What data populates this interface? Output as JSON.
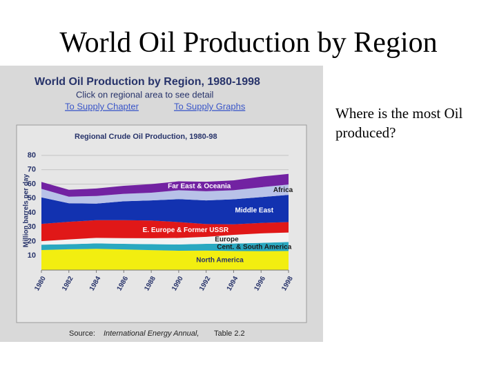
{
  "slide": {
    "title": "World Oil Production by Region",
    "note": "Where is the most Oil produced?"
  },
  "panel": {
    "heading": "World Oil Production by Region, 1980-1998",
    "instruction": "Click on regional area to see detail",
    "link_chapter": "To Supply Chapter",
    "link_graphs": "To Supply Graphs",
    "source_prefix": "Source:",
    "source_title": "International Energy Annual,",
    "source_suffix": "Table 2.2"
  },
  "chart_data": {
    "type": "stacked_area",
    "title": "Regional Crude Oil Production, 1980-98",
    "y_label": "Million barrels per day",
    "x": [
      1980,
      1982,
      1984,
      1986,
      1988,
      1990,
      1992,
      1994,
      1996,
      1998
    ],
    "xlim": [
      1980,
      1998
    ],
    "xticks": [
      1980,
      1982,
      1984,
      1986,
      1988,
      1990,
      1992,
      1994,
      1996,
      1998
    ],
    "ylim": [
      0,
      80
    ],
    "yticks": [
      10,
      20,
      30,
      40,
      50,
      60,
      70,
      80
    ],
    "grid": true,
    "series": [
      {
        "name": "North America",
        "color": "#f2ee10",
        "values": [
          14.0,
          14.5,
          14.8,
          14.4,
          13.9,
          13.5,
          13.6,
          13.3,
          13.2,
          13.3
        ]
      },
      {
        "name": "Cent. & South America",
        "color": "#2aa8c0",
        "values": [
          3.7,
          3.6,
          3.8,
          3.9,
          4.2,
          4.4,
          4.7,
          5.2,
          5.8,
          6.3
        ]
      },
      {
        "name": "Europe",
        "color": "#f2f2f2",
        "values": [
          2.5,
          3.3,
          3.9,
          4.0,
          4.1,
          4.5,
          4.9,
          6.1,
          6.6,
          6.6
        ]
      },
      {
        "name": "E. Europe & Former USSR",
        "color": "#e01818",
        "values": [
          12.0,
          12.3,
          12.3,
          12.5,
          12.4,
          11.1,
          8.9,
          7.3,
          7.3,
          7.3
        ]
      },
      {
        "name": "Middle East",
        "color": "#1232b0",
        "values": [
          18.5,
          12.9,
          11.6,
          13.2,
          14.0,
          16.0,
          16.5,
          17.5,
          18.0,
          19.0
        ]
      },
      {
        "name": "Africa",
        "color": "#b8c2e8",
        "values": [
          6.0,
          4.6,
          5.3,
          5.2,
          5.4,
          6.2,
          6.4,
          6.3,
          6.9,
          7.2
        ]
      },
      {
        "name": "Far East & Oceania",
        "color": "#7222a2",
        "values": [
          4.8,
          4.8,
          5.2,
          5.6,
          6.0,
          6.2,
          6.6,
          6.9,
          7.4,
          7.4
        ]
      }
    ]
  }
}
